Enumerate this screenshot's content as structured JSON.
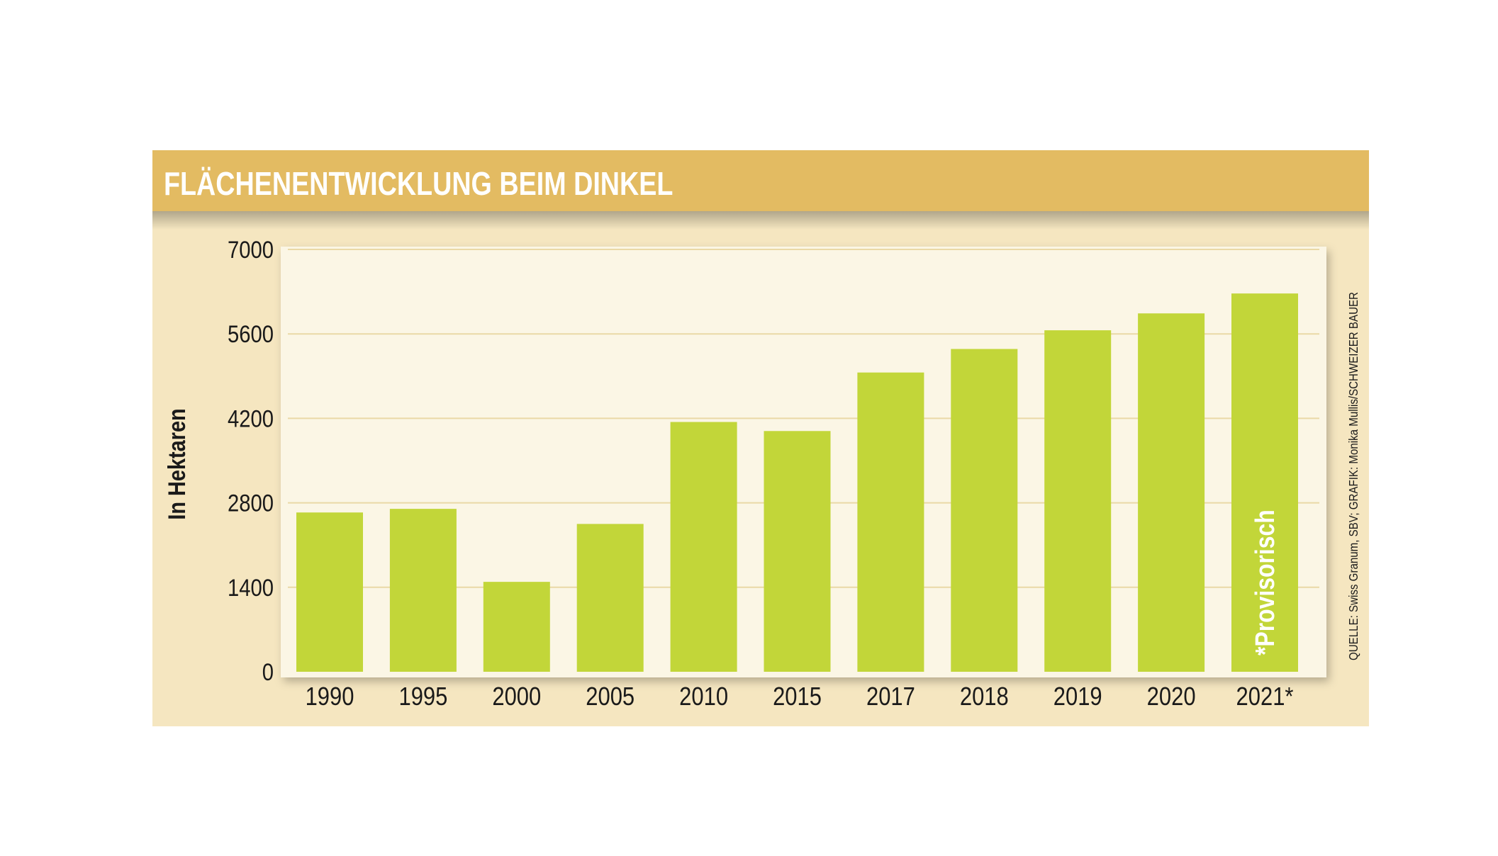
{
  "chart_data": {
    "type": "bar",
    "title": "FLÄCHENENTWICKLUNG BEIM DINKEL",
    "ylabel": "In Hektaren",
    "xlabel": "",
    "categories": [
      "1990",
      "1995",
      "2000",
      "2005",
      "2010",
      "2015",
      "2017",
      "2018",
      "2019",
      "2020",
      "2021*"
    ],
    "values": [
      2640,
      2700,
      1490,
      2450,
      4140,
      3990,
      4960,
      5350,
      5660,
      5940,
      6270
    ],
    "ylim": [
      0,
      7000
    ],
    "yticks": [
      "7000",
      "5600",
      "4200",
      "2800",
      "1400",
      "0"
    ],
    "grid": true,
    "bar_annotation": {
      "category": "2021*",
      "text": "*Provisorisch"
    },
    "source": "QUELLE: Swiss Granum, SBV; GRAFIK: Monika Mullis/SCHWEIZER BAUER"
  },
  "colors": {
    "header_band": "#E3BB62",
    "panel_background": "#F5E6C0",
    "plot_background": "#FBF6E5",
    "bar": "#C2D639",
    "gridline": "#EAD9A6",
    "title_text": "#FFFFFF",
    "axis_text": "#1A1A1A"
  }
}
